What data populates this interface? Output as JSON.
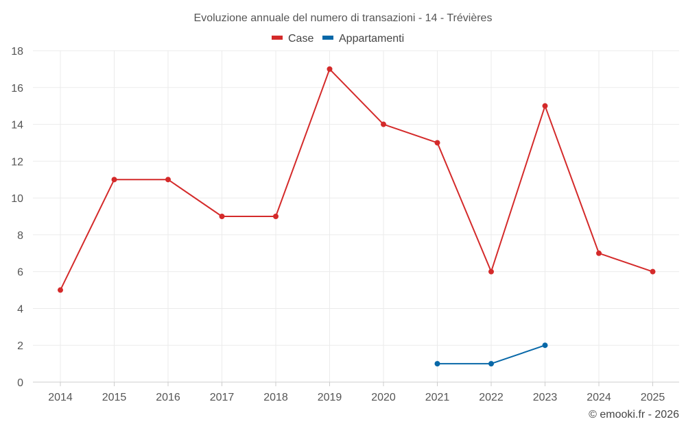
{
  "chart_data": {
    "type": "line",
    "title": "Evoluzione annuale del numero di transazioni - 14 - Trévières",
    "categories": [
      "2014",
      "2015",
      "2016",
      "2017",
      "2018",
      "2019",
      "2020",
      "2021",
      "2022",
      "2023",
      "2024",
      "2025"
    ],
    "series": [
      {
        "name": "Case",
        "color": "#d42a2a",
        "values": [
          5,
          11,
          11,
          9,
          9,
          17,
          14,
          13,
          6,
          15,
          7,
          6
        ]
      },
      {
        "name": "Appartamenti",
        "color": "#0868a8",
        "values": [
          null,
          null,
          null,
          null,
          null,
          null,
          null,
          1,
          1,
          2,
          null,
          null
        ]
      }
    ],
    "ylim": [
      0,
      18
    ],
    "yticks": [
      0,
      2,
      4,
      6,
      8,
      10,
      12,
      14,
      16,
      18
    ],
    "grid": true,
    "legend_position": "top-center"
  },
  "credit": "© emooki.fr - 2026"
}
